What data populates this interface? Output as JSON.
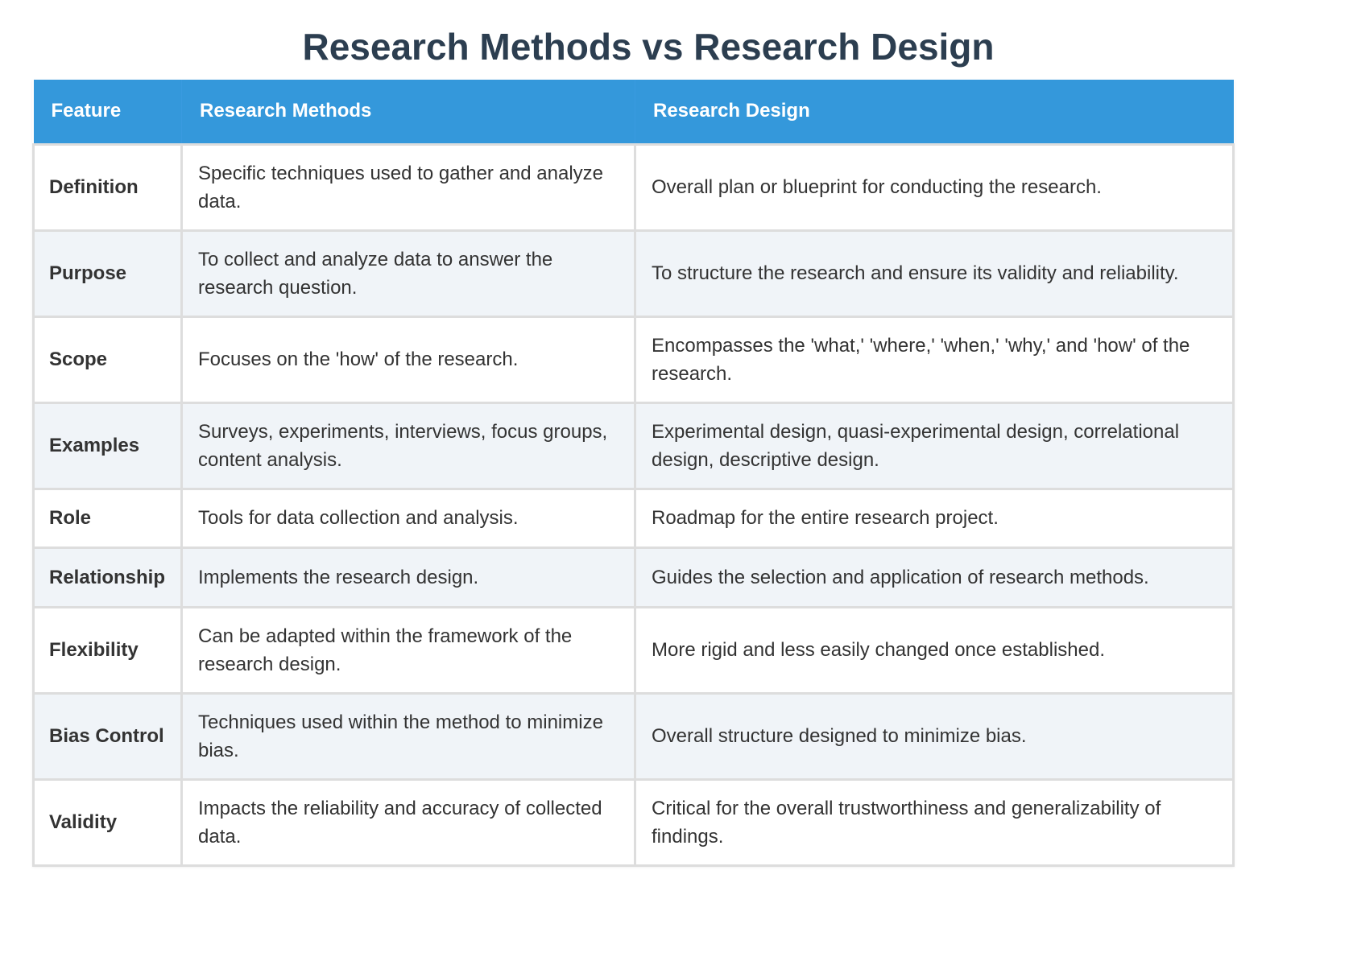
{
  "title": "Research Methods vs Research Design",
  "colors": {
    "title": "#2c3e50",
    "header_bg": "#3498db",
    "header_text": "#ffffff",
    "row_alt_bg": "#f0f4f8",
    "border": "#dddddd",
    "body_text": "#333333"
  },
  "table": {
    "headers": {
      "feature": "Feature",
      "methods": "Research Methods",
      "design": "Research Design"
    },
    "rows": [
      {
        "feature": "Definition",
        "methods": "Specific techniques used to gather and analyze data.",
        "design": "Overall plan or blueprint for conducting the research."
      },
      {
        "feature": "Purpose",
        "methods": "To collect and analyze data to answer the research question.",
        "design": "To structure the research and ensure its validity and reliability."
      },
      {
        "feature": "Scope",
        "methods": "Focuses on the 'how' of the research.",
        "design": "Encompasses the 'what,' 'where,' 'when,' 'why,' and 'how' of the research."
      },
      {
        "feature": "Examples",
        "methods": "Surveys, experiments, interviews, focus groups, content analysis.",
        "design": "Experimental design, quasi-experimental design, correlational design, descriptive design."
      },
      {
        "feature": "Role",
        "methods": "Tools for data collection and analysis.",
        "design": "Roadmap for the entire research project."
      },
      {
        "feature": "Relationship",
        "methods": "Implements the research design.",
        "design": "Guides the selection and application of research methods."
      },
      {
        "feature": "Flexibility",
        "methods": "Can be adapted within the framework of the research design.",
        "design": "More rigid and less easily changed once established."
      },
      {
        "feature": "Bias Control",
        "methods": "Techniques used within the method to minimize bias.",
        "design": "Overall structure designed to minimize bias."
      },
      {
        "feature": "Validity",
        "methods": "Impacts the reliability and accuracy of collected data.",
        "design": "Critical for the overall trustworthiness and generalizability of findings."
      }
    ]
  }
}
